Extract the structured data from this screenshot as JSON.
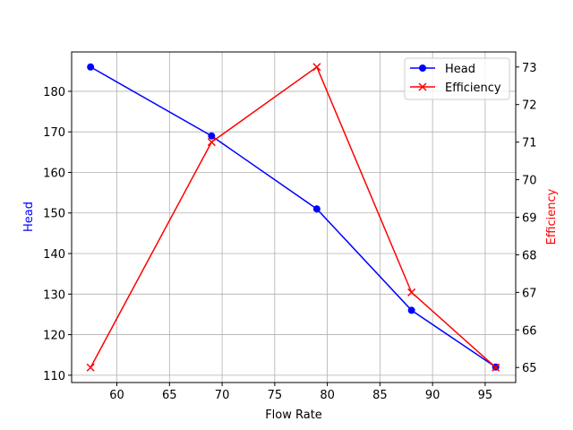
{
  "chart_data": {
    "type": "line",
    "xlabel": "Flow Rate",
    "x": [
      57.5,
      69,
      79,
      88,
      96
    ],
    "xlim": [
      55.7,
      97.9
    ],
    "xticks": [
      60,
      65,
      70,
      75,
      80,
      85,
      90,
      95
    ],
    "grid": true,
    "legend": "top-right",
    "series": [
      {
        "name": "Head",
        "axis": "left",
        "values": [
          186,
          169,
          151,
          126,
          112
        ],
        "color": "#0000ff",
        "marker": "o"
      },
      {
        "name": "Efficiency",
        "axis": "right",
        "values": [
          65,
          71,
          73,
          67,
          65
        ],
        "color": "#ff0000",
        "marker": "x"
      }
    ],
    "left_axis": {
      "label": "Head",
      "color": "#0000ff",
      "ylim": [
        108.2,
        189.7
      ],
      "ticks": [
        110,
        120,
        130,
        140,
        150,
        160,
        170,
        180
      ]
    },
    "right_axis": {
      "label": "Efficiency",
      "color": "#ff0000",
      "ylim": [
        64.6,
        73.4
      ],
      "ticks": [
        65,
        66,
        67,
        68,
        69,
        70,
        71,
        72,
        73
      ]
    }
  }
}
